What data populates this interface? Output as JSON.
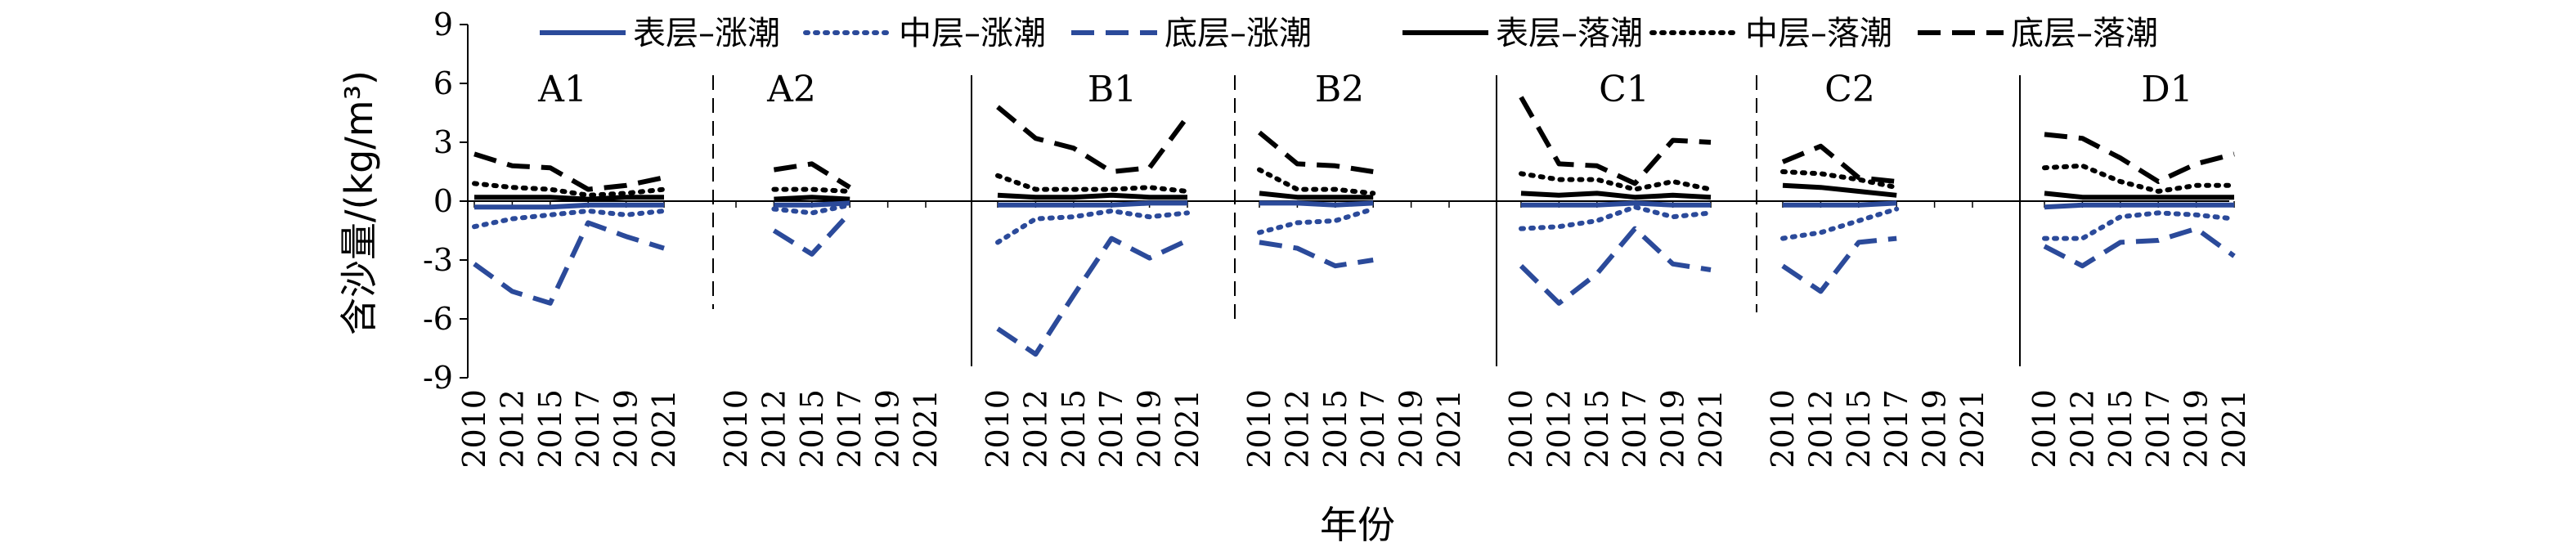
{
  "chart_data": {
    "type": "line",
    "xlabel": "年份",
    "ylabel": "含沙量/(kg/m³)",
    "ylim": [
      -9,
      9
    ],
    "yticks": [
      9,
      6,
      3,
      0,
      -3,
      -6,
      -9
    ],
    "x": [
      "2010",
      "2012",
      "2015",
      "2017",
      "2019",
      "2021"
    ],
    "legend_position": "top",
    "legend": [
      {
        "key": "surf_flood",
        "label": "表层–涨潮",
        "color": "#2b4a9a",
        "style": "solid"
      },
      {
        "key": "mid_flood",
        "label": "中层–涨潮",
        "color": "#2b4a9a",
        "style": "dotted"
      },
      {
        "key": "bot_flood",
        "label": "底层–涨潮",
        "color": "#2b4a9a",
        "style": "dashed"
      },
      {
        "key": "surf_ebb",
        "label": "表层–落潮",
        "color": "#000000",
        "style": "solid"
      },
      {
        "key": "mid_ebb",
        "label": "中层–落潮",
        "color": "#000000",
        "style": "dotted"
      },
      {
        "key": "bot_ebb",
        "label": "底层–落潮",
        "color": "#000000",
        "style": "dashed"
      }
    ],
    "panels": [
      {
        "label": "A1",
        "series": {
          "surf_flood": [
            -0.3,
            -0.3,
            -0.3,
            -0.2,
            -0.2,
            -0.2
          ],
          "mid_flood": [
            -1.3,
            -0.9,
            -0.7,
            -0.5,
            -0.7,
            -0.5
          ],
          "bot_flood": [
            -3.2,
            -4.6,
            -5.2,
            -1.1,
            -1.8,
            -2.4
          ],
          "surf_ebb": [
            0.2,
            0.2,
            0.2,
            0.1,
            0.2,
            0.2
          ],
          "mid_ebb": [
            0.9,
            0.7,
            0.6,
            0.3,
            0.4,
            0.6
          ],
          "bot_ebb": [
            2.4,
            1.8,
            1.7,
            0.6,
            0.8,
            1.2
          ]
        }
      },
      {
        "label": "A2",
        "series": {
          "surf_flood": [
            null,
            -0.2,
            -0.2,
            -0.1,
            null,
            null
          ],
          "mid_flood": [
            null,
            -0.4,
            -0.6,
            -0.2,
            null,
            null
          ],
          "bot_flood": [
            null,
            -1.5,
            -2.7,
            -0.6,
            null,
            null
          ],
          "surf_ebb": [
            null,
            0.1,
            0.2,
            0.1,
            null,
            null
          ],
          "mid_ebb": [
            null,
            0.6,
            0.6,
            0.5,
            null,
            null
          ],
          "bot_ebb": [
            null,
            1.6,
            1.9,
            0.7,
            null,
            null
          ]
        }
      },
      {
        "label": "B1",
        "series": {
          "surf_flood": [
            -0.2,
            -0.2,
            -0.2,
            -0.2,
            -0.1,
            -0.1
          ],
          "mid_flood": [
            -2.1,
            -0.9,
            -0.8,
            -0.5,
            -0.8,
            -0.6
          ],
          "bot_flood": [
            -6.5,
            -7.8,
            -4.8,
            -1.9,
            -2.9,
            -2.0
          ],
          "surf_ebb": [
            0.3,
            0.2,
            0.2,
            0.3,
            0.2,
            0.2
          ],
          "mid_ebb": [
            1.3,
            0.6,
            0.6,
            0.6,
            0.7,
            0.5
          ],
          "bot_ebb": [
            4.8,
            3.2,
            2.7,
            1.5,
            1.7,
            4.3
          ]
        }
      },
      {
        "label": "B2",
        "series": {
          "surf_flood": [
            -0.1,
            -0.1,
            -0.2,
            -0.1,
            null,
            null
          ],
          "mid_flood": [
            -1.6,
            -1.1,
            -1.0,
            -0.4,
            null,
            null
          ],
          "bot_flood": [
            -2.1,
            -2.4,
            -3.3,
            -3.0,
            null,
            null
          ],
          "surf_ebb": [
            0.4,
            0.2,
            0.2,
            0.2,
            null,
            null
          ],
          "mid_ebb": [
            1.6,
            0.6,
            0.6,
            0.4,
            null,
            null
          ],
          "bot_ebb": [
            3.5,
            1.9,
            1.8,
            1.5,
            null,
            null
          ]
        }
      },
      {
        "label": "C1",
        "series": {
          "surf_flood": [
            -0.2,
            -0.2,
            -0.2,
            -0.1,
            -0.2,
            -0.2
          ],
          "mid_flood": [
            -1.4,
            -1.3,
            -1.0,
            -0.3,
            -0.8,
            -0.6
          ],
          "bot_flood": [
            -3.3,
            -5.2,
            -3.7,
            -1.4,
            -3.2,
            -3.5
          ],
          "surf_ebb": [
            0.4,
            0.3,
            0.4,
            0.2,
            0.3,
            0.2
          ],
          "mid_ebb": [
            1.4,
            1.1,
            1.1,
            0.6,
            1.0,
            0.6
          ],
          "bot_ebb": [
            5.3,
            1.9,
            1.8,
            0.9,
            3.1,
            3.0
          ]
        }
      },
      {
        "label": "C2",
        "series": {
          "surf_flood": [
            -0.2,
            -0.2,
            -0.2,
            -0.1,
            null,
            null
          ],
          "mid_flood": [
            -1.9,
            -1.6,
            -1.0,
            -0.4,
            null,
            null
          ],
          "bot_flood": [
            -3.3,
            -4.6,
            -2.1,
            -1.9,
            null,
            null
          ],
          "surf_ebb": [
            0.8,
            0.7,
            0.5,
            0.3,
            null,
            null
          ],
          "mid_ebb": [
            1.5,
            1.4,
            1.1,
            0.7,
            null,
            null
          ],
          "bot_ebb": [
            2.0,
            2.8,
            1.2,
            1.0,
            null,
            null
          ]
        }
      },
      {
        "label": "D1",
        "series": {
          "surf_flood": [
            -0.3,
            -0.2,
            -0.2,
            -0.2,
            -0.2,
            -0.2
          ],
          "mid_flood": [
            -1.9,
            -1.9,
            -0.8,
            -0.6,
            -0.7,
            -0.9
          ],
          "bot_flood": [
            -2.3,
            -3.3,
            -2.1,
            -2.0,
            -1.4,
            -2.8
          ],
          "surf_ebb": [
            0.4,
            0.2,
            0.2,
            0.2,
            0.2,
            0.2
          ],
          "mid_ebb": [
            1.7,
            1.8,
            1.0,
            0.5,
            0.8,
            0.8
          ],
          "bot_ebb": [
            3.4,
            3.2,
            2.2,
            1.0,
            1.9,
            2.4
          ]
        }
      }
    ]
  }
}
